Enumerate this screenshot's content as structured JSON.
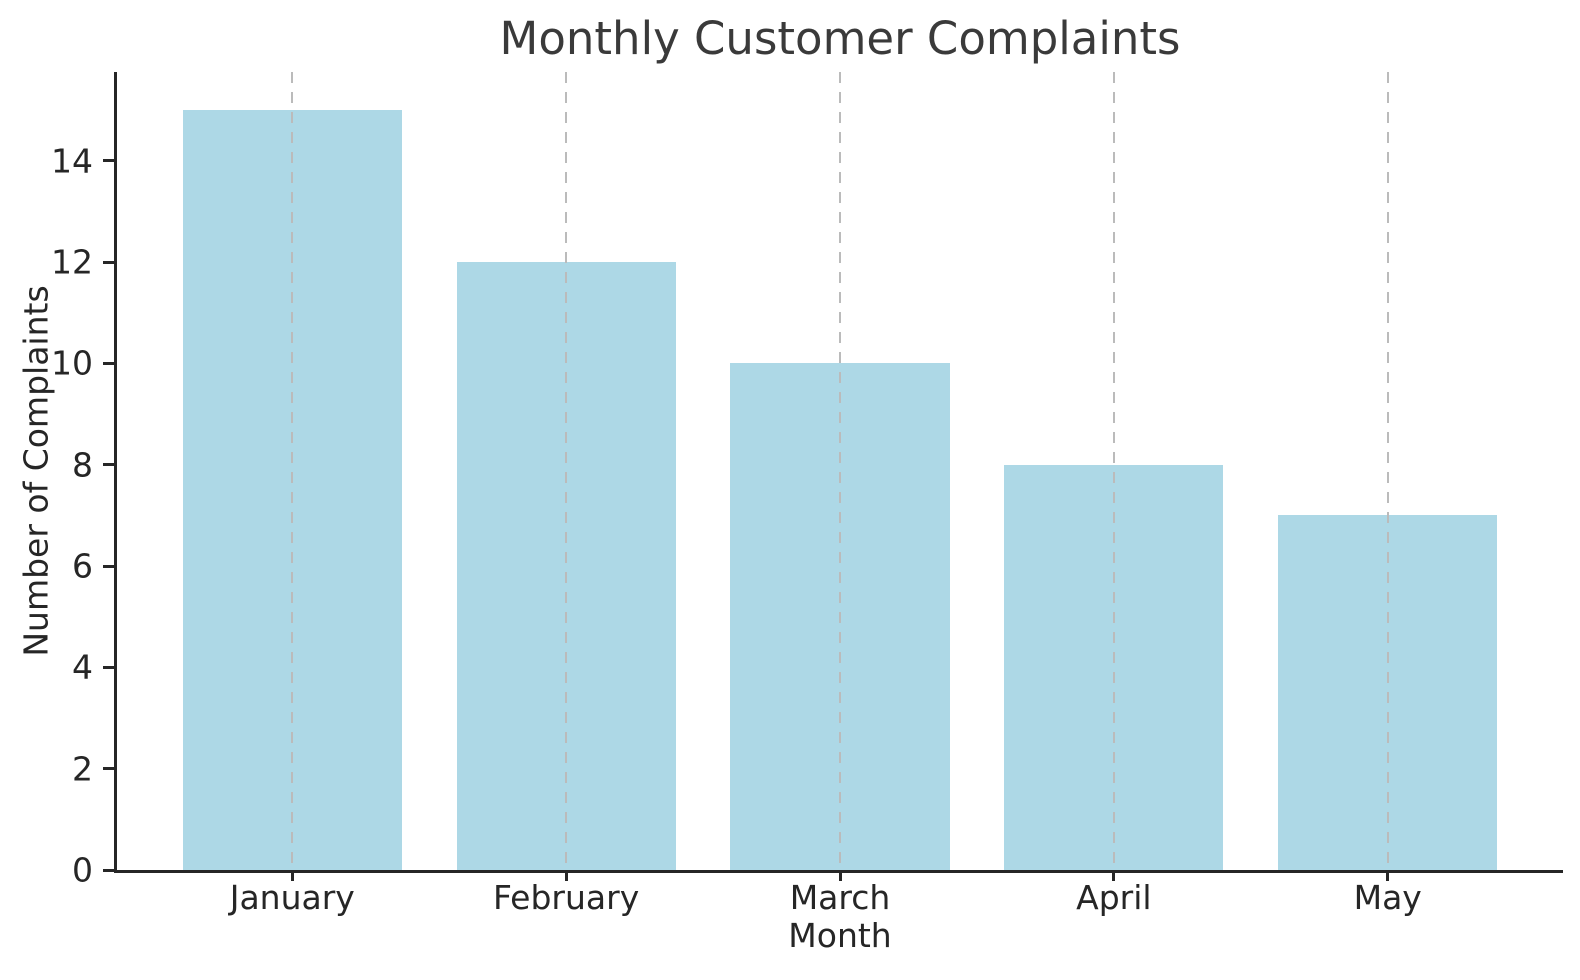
{
  "chart_data": {
    "type": "bar",
    "title": "Monthly Customer Complaints",
    "xlabel": "Month",
    "ylabel": "Number of Complaints",
    "categories": [
      "January",
      "February",
      "March",
      "April",
      "May"
    ],
    "values": [
      15,
      12,
      10,
      8,
      7
    ],
    "yticks": [
      0,
      2,
      4,
      6,
      8,
      10,
      12,
      14
    ],
    "ylim": [
      0,
      15.75
    ],
    "bar_color": "#ADD8E6",
    "gridline_color": "#bbbbbb",
    "axis_color": "#262626",
    "title_color": "#3a3a3a",
    "background_color": "#ffffff",
    "grid": "vertical dashed lines at category centers, drawn over bars",
    "legend": "none"
  }
}
